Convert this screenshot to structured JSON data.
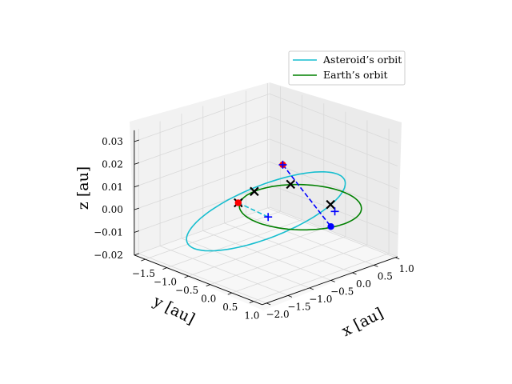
{
  "chart_data": {
    "type": "line",
    "projection": "3d",
    "xlabel": "x [au]",
    "ylabel": "y [au]",
    "zlabel": "z [au]",
    "xlim": [
      -1.75,
      1.2
    ],
    "ylim": [
      -2.1,
      1.05
    ],
    "zlim": [
      -0.02,
      0.035
    ],
    "x_ticks": [
      "−1.5",
      "−1.0",
      "−0.5",
      "0.0",
      "0.5",
      "1.0"
    ],
    "y_ticks": [
      "1.0",
      "0.5",
      "0.0",
      "−0.5",
      "−1.0",
      "−1.5",
      "−2.0"
    ],
    "z_ticks": [
      "0.03",
      "0.02",
      "0.01",
      "0.00",
      "−0.01",
      "−0.02"
    ],
    "x_tick_values": [
      -1.5,
      -1.0,
      -0.5,
      0.0,
      0.5,
      1.0
    ],
    "y_tick_values": [
      1.0,
      0.5,
      0.0,
      -0.5,
      -1.0,
      -1.5,
      -2.0
    ],
    "z_tick_values": [
      0.03,
      0.02,
      0.01,
      0.0,
      -0.01,
      -0.02
    ],
    "grid": true,
    "legend_position": "top-right",
    "series": [
      {
        "name": "Asteroid’s orbit",
        "color": "#17becf",
        "style": "solid",
        "center": [
          -0.25,
          -0.55
        ],
        "semi_axes": [
          1.25,
          1.35
        ],
        "z_amplitude": 0.012
      },
      {
        "name": "Earth’s orbit",
        "color": "#008000",
        "style": "solid",
        "center": [
          0.0,
          0.0
        ],
        "semi_axes": [
          1.0,
          1.0
        ],
        "z_amplitude": 0.0
      }
    ],
    "connectors": [
      {
        "color": "#0000ff",
        "style": "dashed",
        "from": [
          -1.02,
          0.62,
          0.007
        ],
        "to": [
          1.08,
          -0.38,
          0.002
        ]
      },
      {
        "color": "#17becf",
        "style": "dashed",
        "from": [
          -0.05,
          -0.7,
          0.0
        ],
        "to": [
          0.45,
          -1.9,
          0.018
        ]
      }
    ],
    "markers": [
      {
        "shape": "cross",
        "color": "#000000",
        "x": -0.82,
        "y": 0.6,
        "z": 0.0
      },
      {
        "shape": "cross",
        "color": "#000000",
        "x": 0.25,
        "y": 0.45,
        "z": 0.0
      },
      {
        "shape": "cross",
        "color": "#000000",
        "x": -0.22,
        "y": -0.85,
        "z": 0.011
      },
      {
        "shape": "cross",
        "color": "#000000",
        "x": 0.45,
        "y": -1.9,
        "z": 0.018
      },
      {
        "shape": "dot",
        "color": "#ff0000",
        "x": 0.45,
        "y": -1.9,
        "z": 0.018
      },
      {
        "shape": "dot",
        "color": "#ff0000",
        "x": -1.02,
        "y": 0.62,
        "z": 0.007
      },
      {
        "shape": "plus",
        "color": "#0000ff",
        "x": -1.02,
        "y": 0.62,
        "z": 0.007
      },
      {
        "shape": "plus",
        "color": "#0000ff",
        "x": -0.05,
        "y": -0.7,
        "z": 0.0
      },
      {
        "shape": "plus",
        "color": "#0000ff",
        "x": 0.3,
        "y": 0.5,
        "z": -0.003
      },
      {
        "shape": "dot",
        "color": "#0000ff",
        "x": 1.08,
        "y": -0.38,
        "z": 0.002
      }
    ]
  }
}
